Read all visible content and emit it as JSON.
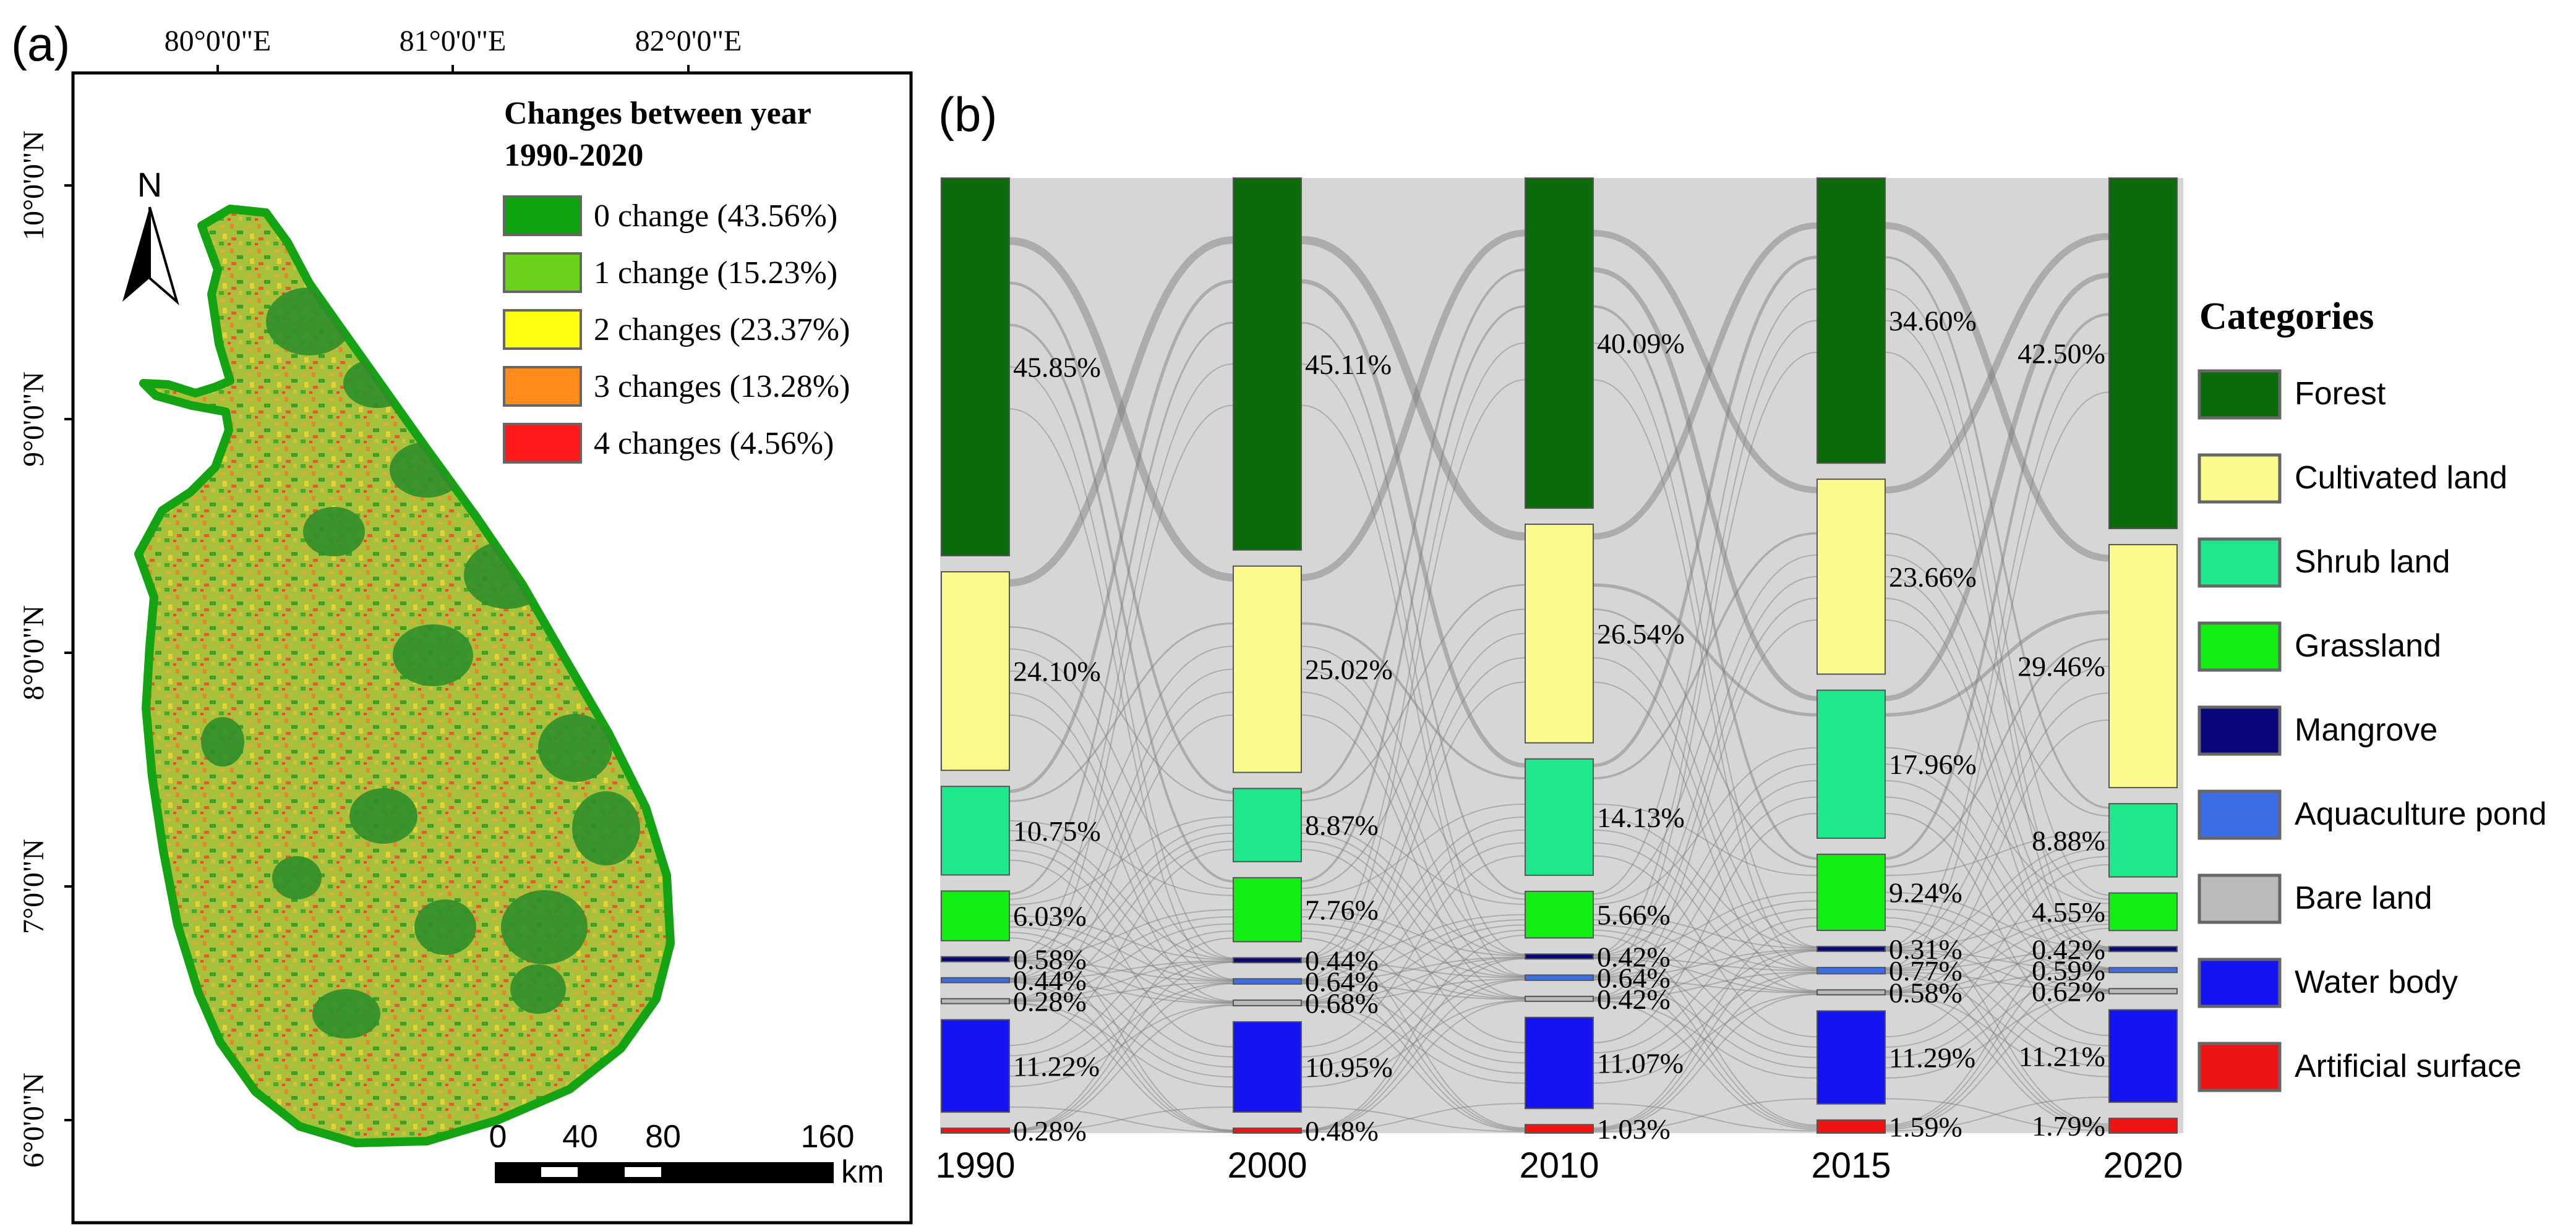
{
  "panel_a": {
    "label": "(a)",
    "longitudes": [
      "80°0'0\"E",
      "81°0'0\"E",
      "82°0'0\"E"
    ],
    "latitudes": [
      "10°0'0\"N",
      "9°0'0\"N",
      "8°0'0\"N",
      "7°0'0\"N",
      "6°0'0\"N"
    ],
    "north": "N",
    "legend_title_line1": "Changes between year",
    "legend_title_line2": "1990-2020",
    "legend": [
      {
        "label": "0 change (43.56%)",
        "color": "#0fa30f"
      },
      {
        "label": "1 change (15.23%)",
        "color": "#6bd11a"
      },
      {
        "label": "2 changes (23.37%)",
        "color": "#ffff14"
      },
      {
        "label": "3 changes (13.28%)",
        "color": "#ff8c1a"
      },
      {
        "label": "4 changes (4.56%)",
        "color": "#ff1a1a"
      }
    ],
    "scale_labels": [
      "0",
      "40",
      "80",
      "160"
    ],
    "scale_unit": "km"
  },
  "panel_b": {
    "label": "(b)",
    "legend_title": "Categories"
  },
  "chart_data": {
    "type": "sankey",
    "title": "",
    "years": [
      "1990",
      "2000",
      "2010",
      "2015",
      "2020"
    ],
    "categories": [
      {
        "name": "Forest",
        "color": "#0b6b0b"
      },
      {
        "name": "Cultivated land",
        "color": "#fbfa8c"
      },
      {
        "name": "Shrub land",
        "color": "#1de88c"
      },
      {
        "name": "Grassland",
        "color": "#11ee11"
      },
      {
        "name": "Mangrove",
        "color": "#07077a"
      },
      {
        "name": "Aquaculture pond",
        "color": "#3a6de6"
      },
      {
        "name": "Bare land",
        "color": "#b9b9b9"
      },
      {
        "name": "Water body",
        "color": "#1414f2"
      },
      {
        "name": "Artificial surface",
        "color": "#ee1414"
      }
    ],
    "values": {
      "1990": [
        45.85,
        24.1,
        10.75,
        6.03,
        0.58,
        0.44,
        0.28,
        11.22,
        0.28
      ],
      "2000": [
        45.11,
        25.02,
        8.87,
        7.76,
        0.44,
        0.64,
        0.68,
        10.95,
        0.48
      ],
      "2010": [
        40.09,
        26.54,
        14.13,
        5.66,
        0.42,
        0.64,
        0.42,
        11.07,
        1.03
      ],
      "2015": [
        34.6,
        23.66,
        17.96,
        9.24,
        0.31,
        0.77,
        0.58,
        11.29,
        1.59
      ],
      "2020": [
        42.5,
        29.46,
        8.88,
        4.55,
        0.42,
        0.59,
        0.62,
        11.21,
        1.79
      ]
    },
    "labels": {
      "1990": [
        "45.85%",
        "24.10%",
        "10.75%",
        "6.03%",
        "0.58%",
        "0.44%",
        "0.28%",
        "11.22%",
        "0.28%"
      ],
      "2000": [
        "45.11%",
        "25.02%",
        "8.87%",
        "7.76%",
        "0.44%",
        "0.64%",
        "0.68%",
        "10.95%",
        "0.48%"
      ],
      "2010": [
        "40.09%",
        "26.54%",
        "14.13%",
        "5.66%",
        "0.42%",
        "0.64%",
        "0.42%",
        "11.07%",
        "1.03%"
      ],
      "2015": [
        "34.60%",
        "23.66%",
        "17.96%",
        "9.24%",
        "0.31%",
        "0.77%",
        "0.58%",
        "11.29%",
        "1.59%"
      ],
      "2020": [
        "42.50%",
        "29.46%",
        "8.88%",
        "4.55%",
        "0.42%",
        "0.59%",
        "0.62%",
        "11.21%",
        "1.79%"
      ]
    },
    "legend_position": "right"
  }
}
